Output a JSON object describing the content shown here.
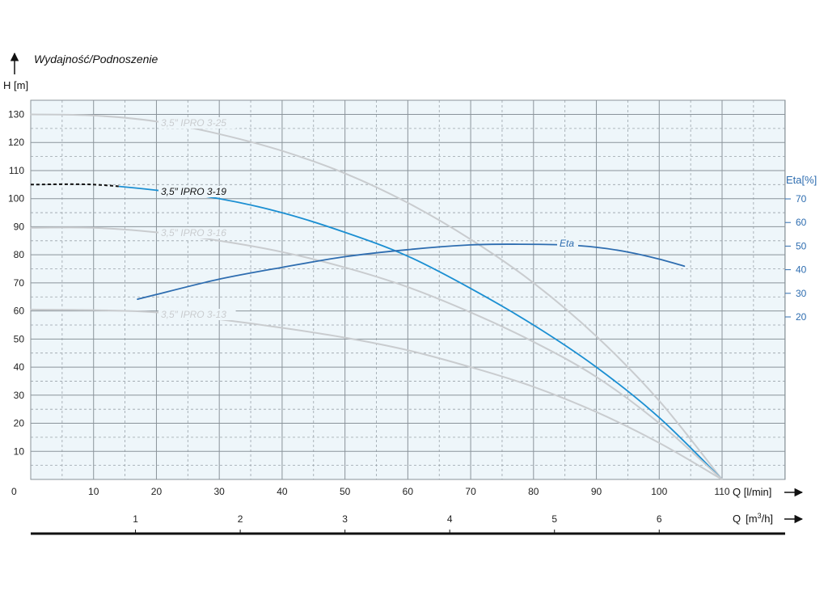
{
  "chart_data": {
    "type": "line",
    "title": "Wydajność/Podnoszenie",
    "ylabel": "H [m]",
    "xlabel": "Q [l/min]",
    "x2label": "Q [m³/h]",
    "y2label": "Eta[%]",
    "xlim": [
      0,
      120
    ],
    "ylim": [
      0,
      135
    ],
    "y2lim": [
      0,
      95
    ],
    "x_ticks": [
      0,
      10,
      20,
      30,
      40,
      50,
      60,
      70,
      80,
      90,
      100,
      110
    ],
    "x_tick_labels": [
      "0",
      "10",
      "20",
      "30",
      "40",
      "50",
      "60",
      "70",
      "80",
      "90",
      "100",
      "110"
    ],
    "y_ticks": [
      10,
      20,
      30,
      40,
      50,
      60,
      70,
      80,
      90,
      100,
      110,
      120,
      130
    ],
    "y_tick_labels": [
      "10",
      "20",
      "30",
      "40",
      "50",
      "60",
      "70",
      "80",
      "90",
      "100",
      "110",
      "120",
      "130"
    ],
    "x2_ticks": [
      1,
      2,
      3,
      4,
      5,
      6
    ],
    "x2_tick_labels": [
      "1",
      "2",
      "3",
      "4",
      "5",
      "6"
    ],
    "y2_ticks": [
      20,
      30,
      40,
      50,
      60,
      70
    ],
    "y2_tick_labels": [
      "20",
      "30",
      "40",
      "50",
      "60",
      "70"
    ],
    "grid": true,
    "colors": {
      "plot_bg": "#eef6fa",
      "grid_major": "#8a939a",
      "grid_minor": "#9aa3aa",
      "highlight": "#1b8fd2",
      "inactive": "#c9cccf",
      "eta": "#2e6db0",
      "dashed": "#111111"
    },
    "series": [
      {
        "name": "3,5″ IPRO 3-25",
        "style": "inactive",
        "x": [
          0,
          10,
          20,
          30,
          40,
          50,
          60,
          70,
          80,
          90,
          100,
          110
        ],
        "y": [
          130,
          129.6,
          127.5,
          123,
          117,
          109,
          98.5,
          85.5,
          70,
          51,
          28,
          0
        ]
      },
      {
        "name": "3,5″ IPRO 3-19",
        "style": "highlight",
        "dashed_until": 14,
        "x": [
          0,
          10,
          20,
          30,
          40,
          50,
          60,
          70,
          80,
          90,
          100,
          110
        ],
        "y": [
          105,
          105,
          103,
          100,
          95,
          88,
          79.5,
          68,
          55,
          40,
          22,
          0
        ]
      },
      {
        "name": "3,5″ IPRO 3-16",
        "style": "inactive",
        "x": [
          0,
          10,
          20,
          30,
          40,
          50,
          60,
          70,
          80,
          90,
          100,
          110
        ],
        "y": [
          89.6,
          89.6,
          88,
          85,
          81,
          75.5,
          68.5,
          59.5,
          49,
          36.5,
          20,
          0
        ]
      },
      {
        "name": "3,5″ IPRO 3-13",
        "style": "inactive",
        "x": [
          0,
          10,
          20,
          30,
          40,
          50,
          60,
          70,
          80,
          90,
          100,
          110
        ],
        "y": [
          60.5,
          60.3,
          59.5,
          57,
          54,
          50.5,
          46,
          40,
          33,
          24,
          13,
          0
        ]
      },
      {
        "name": "Eta",
        "style": "eta",
        "axis": "y2",
        "x": [
          17,
          20,
          30,
          40,
          50,
          60,
          70,
          78,
          85,
          90,
          95,
          100,
          104
        ],
        "y": [
          27.5,
          29.5,
          36,
          41,
          45.5,
          48.5,
          50.5,
          50.8,
          50.5,
          49.5,
          47.5,
          44.5,
          41.5
        ]
      }
    ]
  }
}
